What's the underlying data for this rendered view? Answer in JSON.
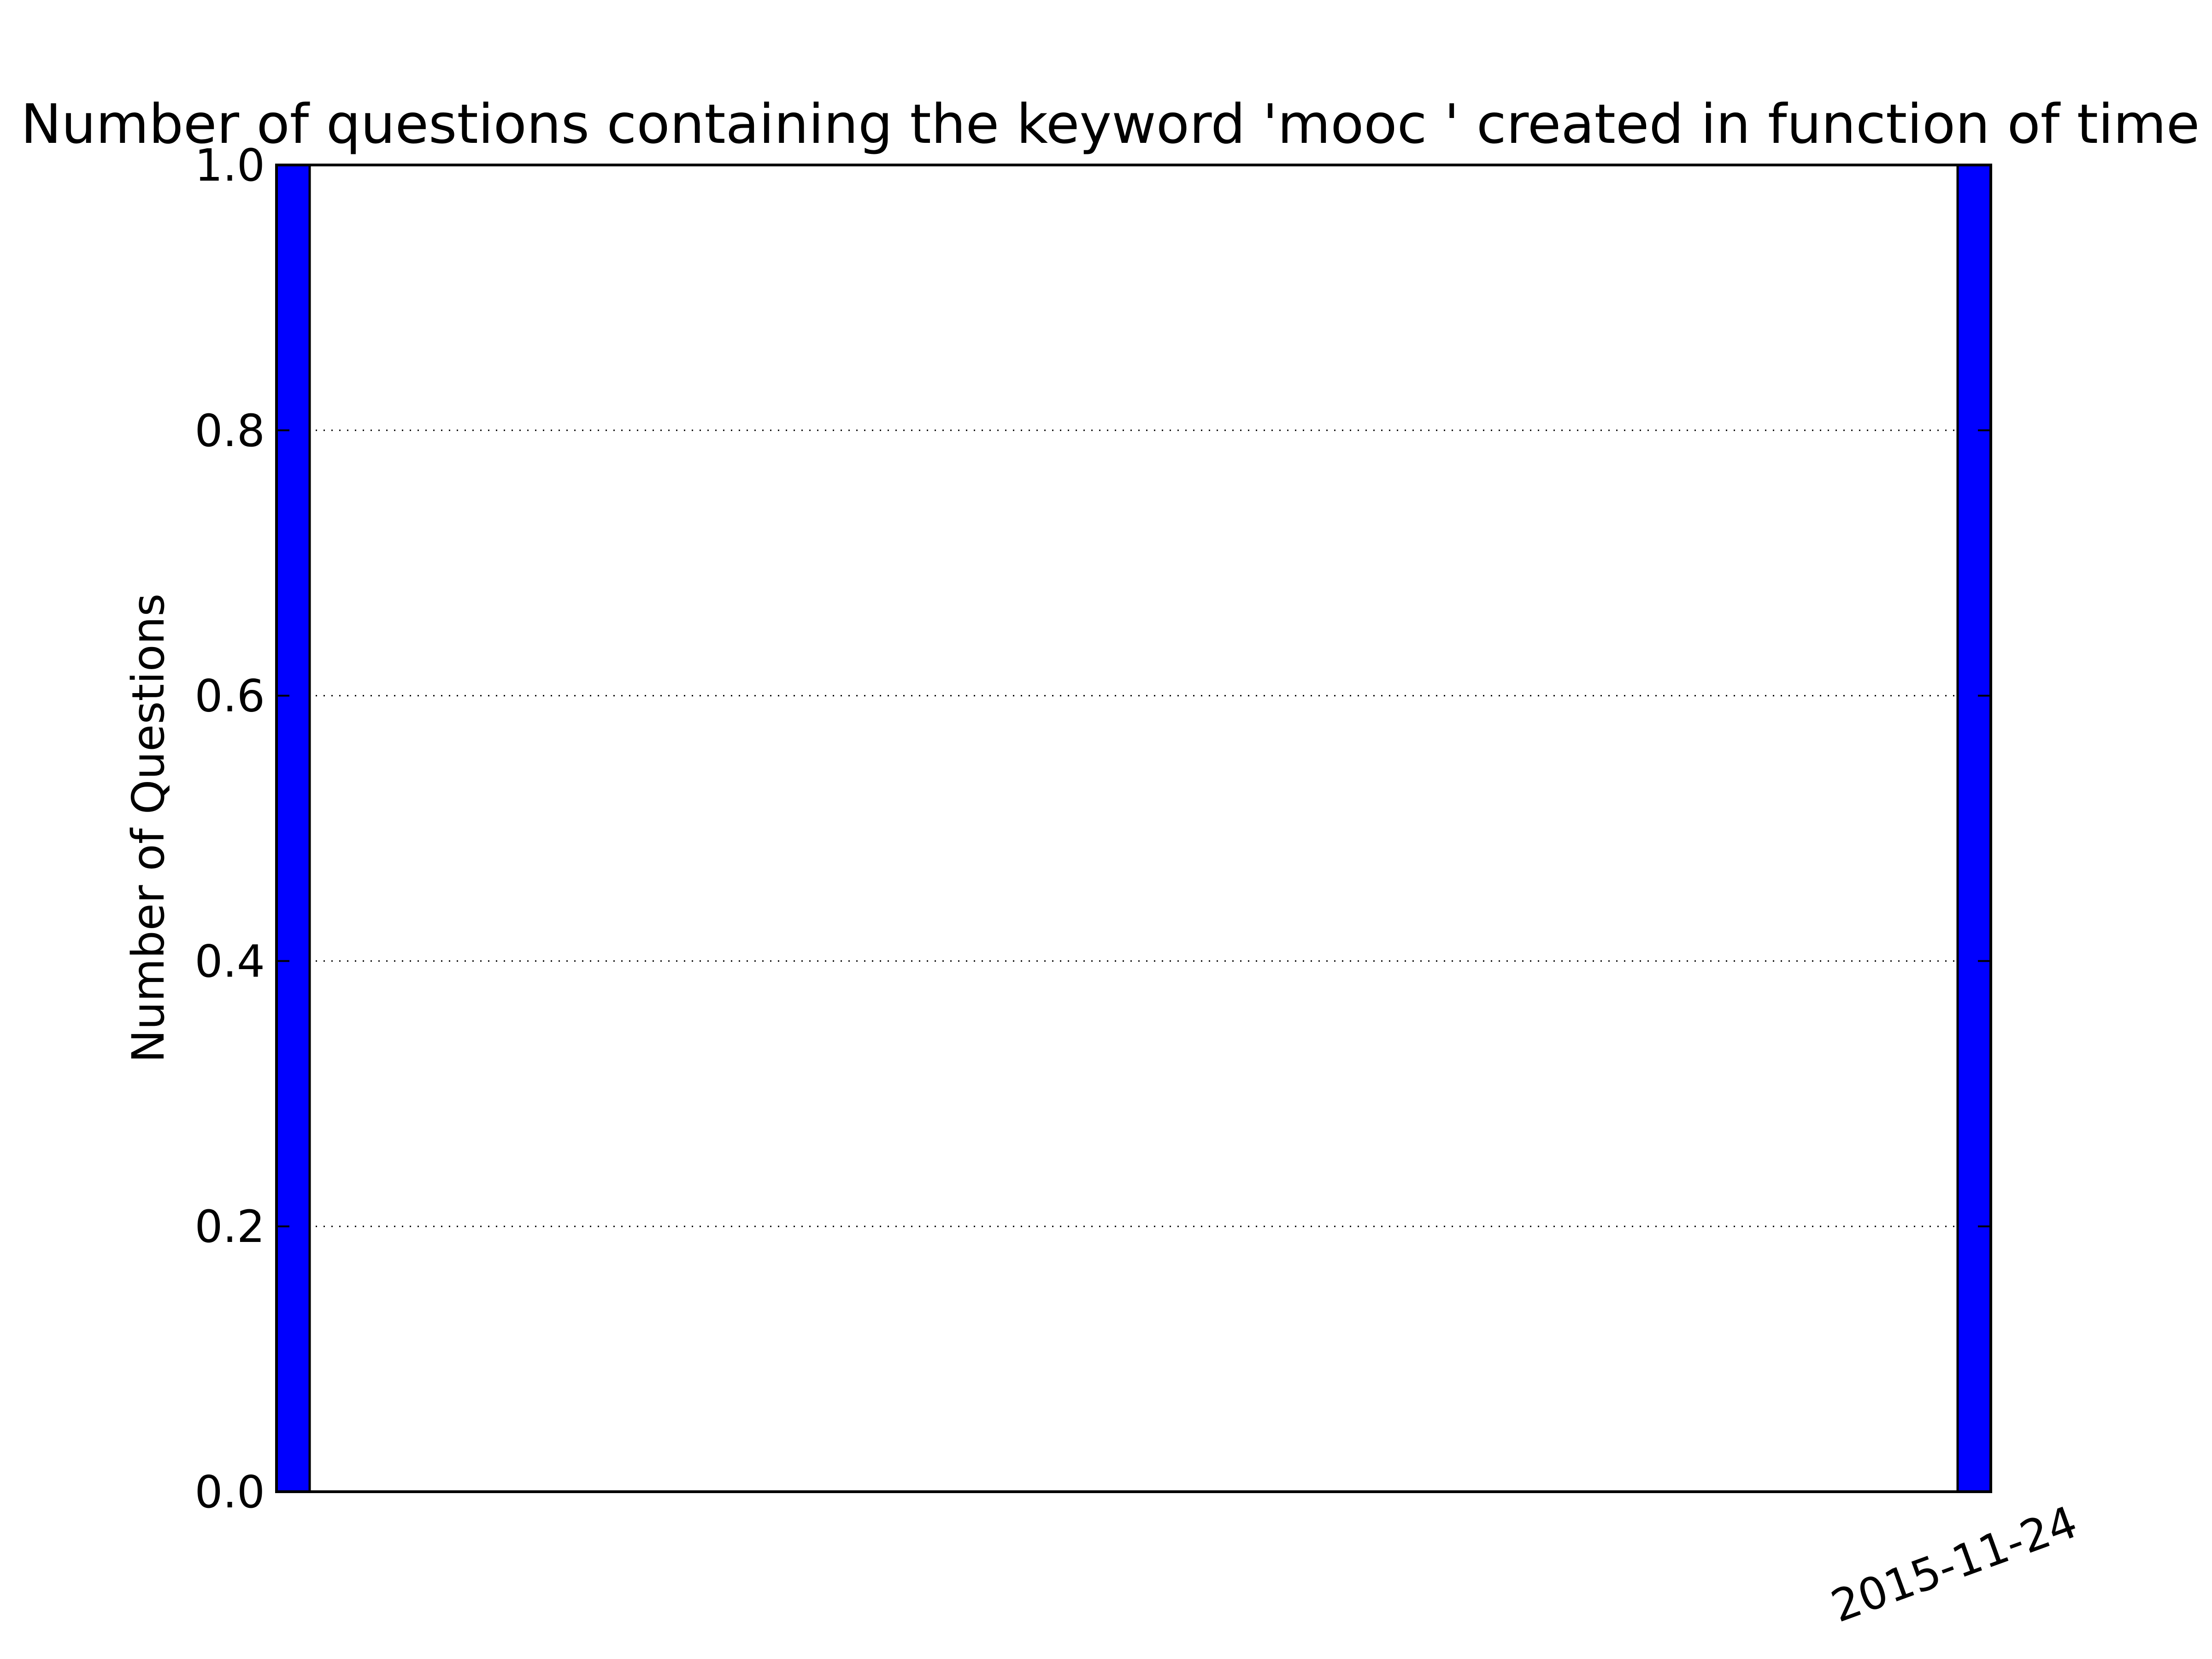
{
  "chart_data": {
    "type": "bar",
    "title": "Number of questions containing the keyword  'mooc ' created in function of time",
    "xlabel": "",
    "ylabel": "Number of Questions",
    "ylim": [
      0.0,
      1.0
    ],
    "yticks": [
      "0.0",
      "0.2",
      "0.4",
      "0.6",
      "0.8",
      "1.0"
    ],
    "ytick_values": [
      0.0,
      0.2,
      0.4,
      0.6,
      0.8,
      1.0
    ],
    "grid": true,
    "categories": [
      "",
      "2015-11-24"
    ],
    "x_tick_labels": [
      "2015-11-24"
    ],
    "values": [
      1,
      1
    ],
    "bar_color": "#0000ff"
  }
}
